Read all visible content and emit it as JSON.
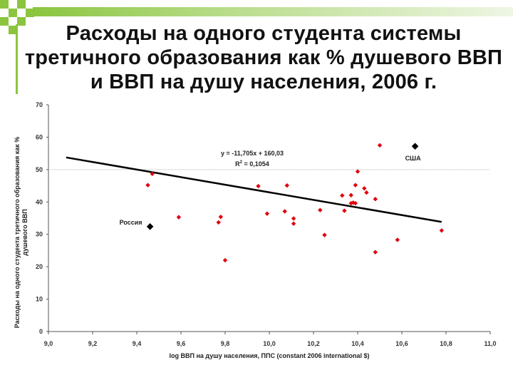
{
  "title": "Расходы на одного студента системы третичного образования как % душевого ВВП и ВВП на душу населения, 2006 г.",
  "colors": {
    "accent": "#8bc53f",
    "points": "#e0000f",
    "highlight": "#000000"
  },
  "chart_data": {
    "type": "scatter",
    "xlabel": "log ВВП на душу населения, ППС (constant 2006 international $)",
    "ylabel": "Расходы на одного студента третичного образования как % душевого ВВП",
    "xlim": [
      9.0,
      11.0
    ],
    "ylim": [
      0,
      70
    ],
    "xticks": [
      "9,0",
      "9,2",
      "9,4",
      "9,6",
      "9,8",
      "10,0",
      "10,2",
      "10,4",
      "10,6",
      "10,8",
      "11,0"
    ],
    "yticks": [
      "0",
      "10",
      "20",
      "30",
      "40",
      "50",
      "60",
      "70"
    ],
    "grid": "horizontal line at 50",
    "points": [
      {
        "x": 9.45,
        "y": 45.2
      },
      {
        "x": 9.47,
        "y": 48.7
      },
      {
        "x": 9.59,
        "y": 35.3
      },
      {
        "x": 9.77,
        "y": 33.7
      },
      {
        "x": 9.78,
        "y": 35.4
      },
      {
        "x": 9.8,
        "y": 22.0
      },
      {
        "x": 9.95,
        "y": 44.9
      },
      {
        "x": 9.99,
        "y": 36.4
      },
      {
        "x": 10.07,
        "y": 37.1
      },
      {
        "x": 10.08,
        "y": 45.1
      },
      {
        "x": 10.11,
        "y": 33.3
      },
      {
        "x": 10.11,
        "y": 34.9
      },
      {
        "x": 10.23,
        "y": 37.5
      },
      {
        "x": 10.25,
        "y": 29.8
      },
      {
        "x": 10.33,
        "y": 42.0
      },
      {
        "x": 10.34,
        "y": 37.3
      },
      {
        "x": 10.37,
        "y": 39.6
      },
      {
        "x": 10.37,
        "y": 42.1
      },
      {
        "x": 10.38,
        "y": 39.8
      },
      {
        "x": 10.39,
        "y": 39.6
      },
      {
        "x": 10.39,
        "y": 45.2
      },
      {
        "x": 10.4,
        "y": 49.4
      },
      {
        "x": 10.43,
        "y": 44.2
      },
      {
        "x": 10.44,
        "y": 42.9
      },
      {
        "x": 10.48,
        "y": 24.5
      },
      {
        "x": 10.48,
        "y": 40.9
      },
      {
        "x": 10.5,
        "y": 57.5
      },
      {
        "x": 10.58,
        "y": 28.3
      },
      {
        "x": 10.78,
        "y": 31.2
      }
    ],
    "highlighted": [
      {
        "label": "Россия",
        "x": 9.46,
        "y": 32.4
      },
      {
        "label": "США",
        "x": 10.66,
        "y": 57.2
      }
    ],
    "trendline": {
      "slope": -11.705,
      "intercept": 160.03,
      "x_range": [
        9.08,
        10.78
      ],
      "equation": "y = -11,705x + 160,03",
      "r2_prefix": "R",
      "r2_sup": "2",
      "r2_value": " = 0,1054"
    }
  }
}
